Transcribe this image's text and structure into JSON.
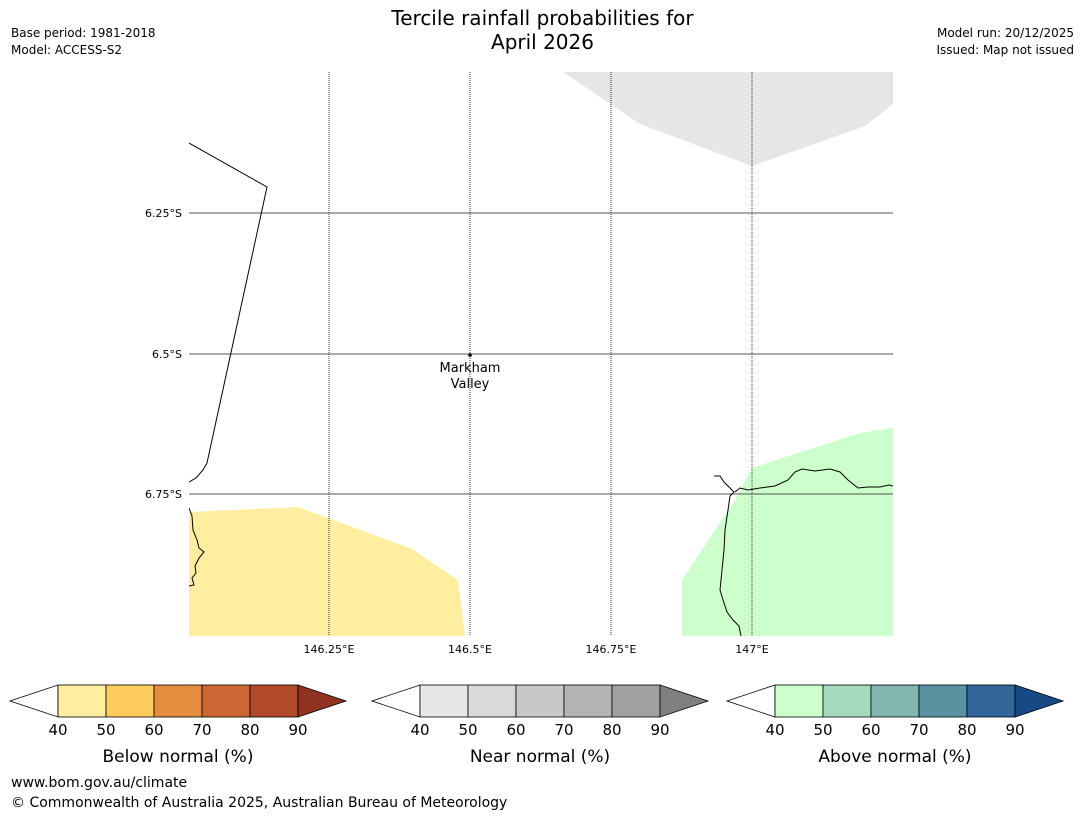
{
  "header": {
    "title_line1": "Tercile rainfall probabilities for",
    "title_line2": "April 2026",
    "base_period": "Base period: 1981-2018",
    "model": "Model: ACCESS-S2",
    "model_run": "Model run: 20/12/2025",
    "issued": "Issued: Map not issued"
  },
  "map": {
    "lat_labels": [
      "6.25°S",
      "6.5°S",
      "6.75°S"
    ],
    "lon_labels": [
      "146.25°E",
      "146.5°E",
      "146.75°E",
      "147°E"
    ],
    "place": {
      "name_line1": "Markham",
      "name_line2": "Valley"
    },
    "colors": {
      "below_40": "#ffeda0",
      "near_40": "#e6e6e6",
      "above_40": "#ccffcc"
    }
  },
  "legends": [
    {
      "label": "Below normal (%)",
      "ticks": [
        "40",
        "50",
        "60",
        "70",
        "80",
        "90"
      ],
      "colors": [
        "#ffeda0",
        "#fecc5c",
        "#e38f3f",
        "#cc6633",
        "#b04a29",
        "#8f3320"
      ]
    },
    {
      "label": "Near normal (%)",
      "ticks": [
        "40",
        "50",
        "60",
        "70",
        "80",
        "90"
      ],
      "colors": [
        "#e6e6e6",
        "#d9d9d9",
        "#c8c8c8",
        "#b4b4b4",
        "#a0a0a0",
        "#808080"
      ]
    },
    {
      "label": "Above normal (%)",
      "ticks": [
        "40",
        "50",
        "60",
        "70",
        "80",
        "90"
      ],
      "colors": [
        "#ccffcc",
        "#a6d9bd",
        "#80b5b0",
        "#5a91a0",
        "#336699",
        "#174a85"
      ]
    }
  ],
  "footer": {
    "website": "www.bom.gov.au/climate",
    "copyright": "© Commonwealth of Australia 2025, Australian Bureau of Meteorology"
  }
}
